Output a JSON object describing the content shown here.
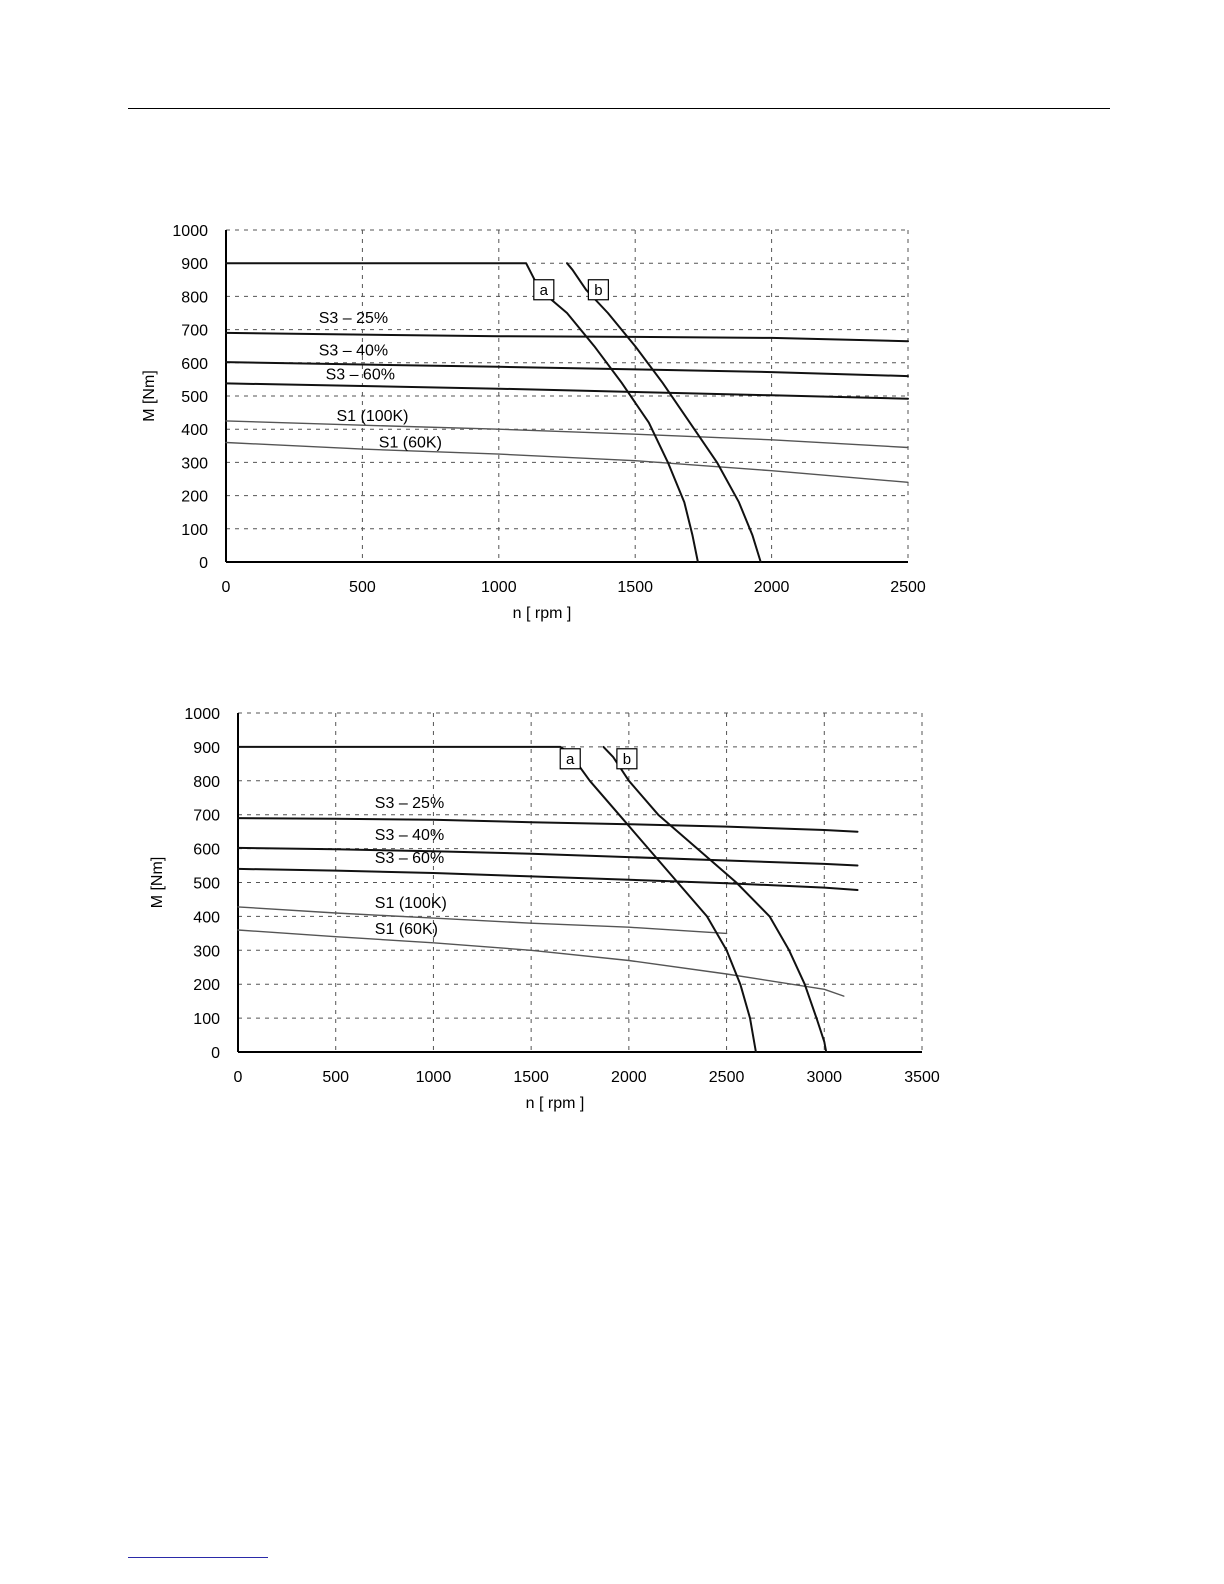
{
  "colors": {
    "line_dark": "#111111",
    "line_light": "#555555",
    "grid": "#555555"
  },
  "chart_data": [
    {
      "type": "line",
      "xlabel": "n [ rpm ]",
      "ylabel": "M [Nm]",
      "xlim": [
        0,
        2500
      ],
      "ylim": [
        0,
        1000
      ],
      "xticks": [
        "0",
        "500",
        "1000",
        "1500",
        "2000",
        "2500"
      ],
      "yticks": [
        "0",
        "100",
        "200",
        "300",
        "400",
        "500",
        "600",
        "700",
        "800",
        "900",
        "1000"
      ],
      "grid": true,
      "series": [
        {
          "name": "S3 – 25%",
          "x": [
            0,
            500,
            1000,
            1500,
            2000,
            2500
          ],
          "y": [
            690,
            685,
            680,
            678,
            675,
            665
          ]
        },
        {
          "name": "S3 – 40%",
          "x": [
            0,
            500,
            1000,
            1500,
            2000,
            2500
          ],
          "y": [
            602,
            595,
            588,
            580,
            572,
            560
          ]
        },
        {
          "name": "S3 – 60%",
          "x": [
            0,
            500,
            1000,
            1500,
            2000,
            2500
          ],
          "y": [
            538,
            530,
            522,
            512,
            502,
            492
          ]
        },
        {
          "name": "S1 (100K)",
          "x": [
            0,
            500,
            1000,
            1500,
            2000,
            2500
          ],
          "y": [
            425,
            412,
            400,
            385,
            368,
            345
          ]
        },
        {
          "name": "S1 (60K)",
          "x": [
            0,
            500,
            1000,
            1500,
            2000,
            2500
          ],
          "y": [
            360,
            340,
            325,
            305,
            275,
            240
          ]
        },
        {
          "name": "a",
          "x": [
            0,
            1100,
            1150,
            1250,
            1350,
            1450,
            1550,
            1620,
            1680,
            1710,
            1730
          ],
          "y": [
            900,
            900,
            820,
            750,
            650,
            540,
            420,
            300,
            180,
            80,
            0
          ]
        },
        {
          "name": "b",
          "x": [
            1250,
            1270,
            1320,
            1400,
            1500,
            1600,
            1700,
            1800,
            1880,
            1930,
            1960
          ],
          "y": [
            900,
            880,
            820,
            750,
            650,
            540,
            420,
            300,
            180,
            80,
            0
          ]
        }
      ],
      "labels": [
        {
          "text": "S3 – 25%",
          "x": 340,
          "y": 720
        },
        {
          "text": "S3 – 40%",
          "x": 340,
          "y": 622
        },
        {
          "text": "S3 – 60%",
          "x": 365,
          "y": 550
        },
        {
          "text": "S1 (100K)",
          "x": 405,
          "y": 425
        },
        {
          "text": "S1 (60K)",
          "x": 560,
          "y": 345
        }
      ],
      "tags": [
        {
          "text": "a",
          "x": 1165,
          "y": 820
        },
        {
          "text": "b",
          "x": 1365,
          "y": 820
        }
      ]
    },
    {
      "type": "line",
      "xlabel": "n [ rpm ]",
      "ylabel": "M [Nm]",
      "xlim": [
        0,
        3500
      ],
      "ylim": [
        0,
        1000
      ],
      "xticks": [
        "0",
        "500",
        "1000",
        "1500",
        "2000",
        "2500",
        "3000",
        "3500"
      ],
      "yticks": [
        "0",
        "100",
        "200",
        "300",
        "400",
        "500",
        "600",
        "700",
        "800",
        "900",
        "1000"
      ],
      "grid": true,
      "series": [
        {
          "name": "S3 – 25%",
          "x": [
            0,
            500,
            1000,
            1500,
            2000,
            2500,
            3000,
            3170
          ],
          "y": [
            690,
            688,
            685,
            678,
            672,
            665,
            655,
            650
          ]
        },
        {
          "name": "S3 – 40%",
          "x": [
            0,
            500,
            1000,
            1500,
            2000,
            2500,
            3000,
            3170
          ],
          "y": [
            602,
            598,
            592,
            585,
            575,
            565,
            555,
            550
          ]
        },
        {
          "name": "S3 – 60%",
          "x": [
            0,
            500,
            1000,
            1500,
            2000,
            2500,
            3000,
            3170
          ],
          "y": [
            540,
            535,
            528,
            518,
            508,
            498,
            485,
            478
          ]
        },
        {
          "name": "S1 (100K)",
          "x": [
            0,
            500,
            1000,
            1500,
            2000,
            2500
          ],
          "y": [
            428,
            410,
            395,
            380,
            368,
            350
          ]
        },
        {
          "name": "S1 (60K)",
          "x": [
            0,
            500,
            1000,
            1500,
            2000,
            2500,
            3000,
            3100
          ],
          "y": [
            360,
            340,
            322,
            300,
            270,
            230,
            185,
            165
          ]
        },
        {
          "name": "a",
          "x": [
            0,
            1650,
            1700,
            1800,
            1950,
            2100,
            2250,
            2400,
            2500,
            2570,
            2620,
            2650
          ],
          "y": [
            900,
            900,
            880,
            800,
            700,
            600,
            500,
            400,
            300,
            200,
            100,
            0
          ]
        },
        {
          "name": "b",
          "x": [
            1870,
            1920,
            2000,
            2150,
            2350,
            2550,
            2720,
            2820,
            2900,
            2960,
            3000,
            3010
          ],
          "y": [
            900,
            870,
            800,
            700,
            600,
            500,
            400,
            300,
            200,
            100,
            30,
            0
          ]
        }
      ],
      "labels": [
        {
          "text": "S3 – 25%",
          "x": 700,
          "y": 720
        },
        {
          "text": "S3 – 40%",
          "x": 700,
          "y": 625
        },
        {
          "text": "S3 – 60%",
          "x": 700,
          "y": 558
        },
        {
          "text": "S1 (100K)",
          "x": 700,
          "y": 425
        },
        {
          "text": "S1 (60K)",
          "x": 700,
          "y": 348
        }
      ],
      "tags": [
        {
          "text": "a",
          "x": 1700,
          "y": 865
        },
        {
          "text": "b",
          "x": 1990,
          "y": 865
        }
      ]
    }
  ]
}
